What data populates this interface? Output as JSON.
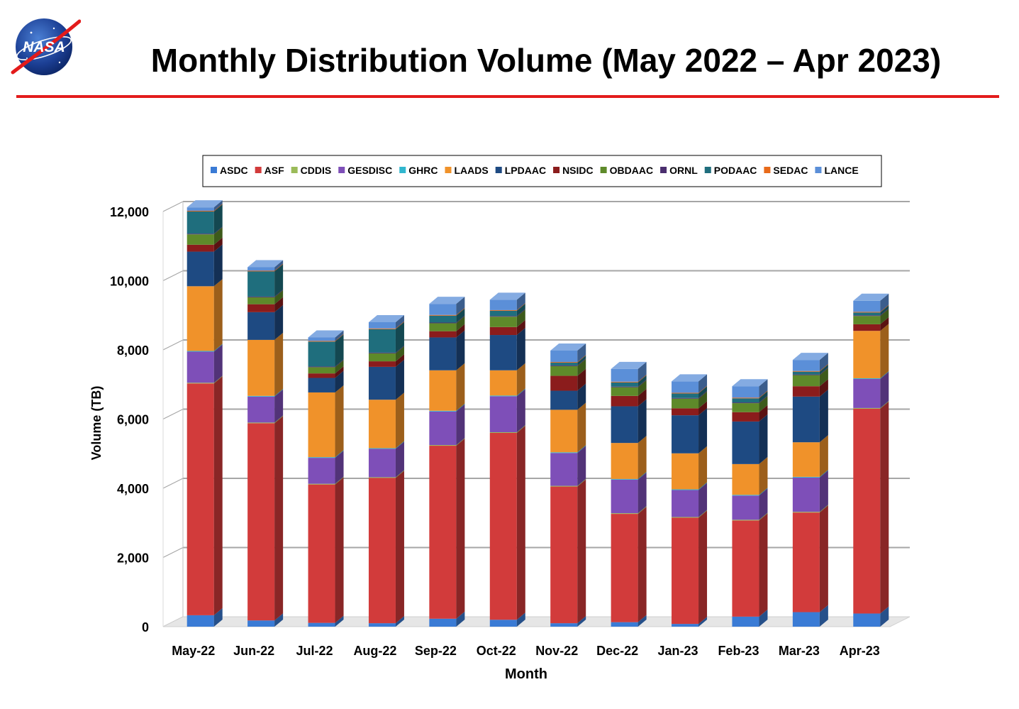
{
  "header": {
    "title": "Monthly Distribution Volume (May 2022 – Apr 2023)",
    "logo_text": "NASA",
    "rule_color": "#e31b1b"
  },
  "chart_data": {
    "type": "bar",
    "stacked": true,
    "xlabel": "Month",
    "ylabel": "Volume (TB)",
    "ylim": [
      0,
      12000
    ],
    "ytick_step": 2000,
    "ytick_labels": [
      "0",
      "2,000",
      "4,000",
      "6,000",
      "8,000",
      "10,000",
      "12,000"
    ],
    "grid": true,
    "legend_position": "top",
    "categories": [
      "May-22",
      "Jun-22",
      "Jul-22",
      "Aug-22",
      "Sep-22",
      "Oct-22",
      "Nov-22",
      "Dec-22",
      "Jan-23",
      "Feb-23",
      "Mar-23",
      "Apr-23"
    ],
    "series": [
      {
        "name": "ASDC",
        "color": "#3a7bd5",
        "values": [
          330,
          180,
          110,
          100,
          230,
          200,
          100,
          130,
          80,
          290,
          420,
          380
        ]
      },
      {
        "name": "ASF",
        "color": "#d23b3b",
        "values": [
          6700,
          5700,
          4000,
          4200,
          5000,
          5400,
          3950,
          3130,
          3070,
          2780,
          2880,
          5920
        ]
      },
      {
        "name": "CDDIS",
        "color": "#9bbb59",
        "values": [
          20,
          20,
          20,
          20,
          20,
          20,
          20,
          20,
          20,
          20,
          20,
          20
        ]
      },
      {
        "name": "GESDISC",
        "color": "#7e4fb8",
        "values": [
          900,
          750,
          750,
          820,
          970,
          1040,
          950,
          970,
          780,
          700,
          990,
          840
        ]
      },
      {
        "name": "GHRC",
        "color": "#31b7cf",
        "values": [
          20,
          20,
          20,
          20,
          20,
          20,
          20,
          20,
          20,
          20,
          20,
          20
        ]
      },
      {
        "name": "LAADS",
        "color": "#f0922a",
        "values": [
          1870,
          1620,
          1870,
          1400,
          1170,
          730,
          1230,
          1040,
          1040,
          890,
          1000,
          1370
        ]
      },
      {
        "name": "LPDAAC",
        "color": "#1e4a82",
        "values": [
          1000,
          800,
          420,
          950,
          950,
          1020,
          550,
          1060,
          1100,
          1230,
          1320,
          0
        ]
      },
      {
        "name": "NSIDC",
        "color": "#8b1c1c",
        "values": [
          200,
          230,
          130,
          160,
          180,
          230,
          430,
          300,
          200,
          270,
          300,
          190
        ]
      },
      {
        "name": "OBDAAC",
        "color": "#5e8a2a",
        "values": [
          300,
          200,
          180,
          230,
          230,
          300,
          280,
          250,
          280,
          260,
          320,
          240
        ]
      },
      {
        "name": "ORNL",
        "color": "#4a2e6e",
        "values": [
          20,
          20,
          20,
          20,
          20,
          20,
          20,
          20,
          20,
          20,
          20,
          20
        ]
      },
      {
        "name": "PODAAC",
        "color": "#1f6e7d",
        "values": [
          640,
          730,
          720,
          680,
          200,
          150,
          80,
          120,
          130,
          120,
          80,
          80
        ]
      },
      {
        "name": "SEDAC",
        "color": "#e86a1a",
        "values": [
          20,
          20,
          20,
          20,
          20,
          20,
          20,
          20,
          20,
          20,
          20,
          20
        ]
      },
      {
        "name": "LANCE",
        "color": "#5b8fd8",
        "values": [
          100,
          100,
          100,
          180,
          320,
          300,
          330,
          370,
          330,
          330,
          320,
          320
        ]
      }
    ]
  }
}
